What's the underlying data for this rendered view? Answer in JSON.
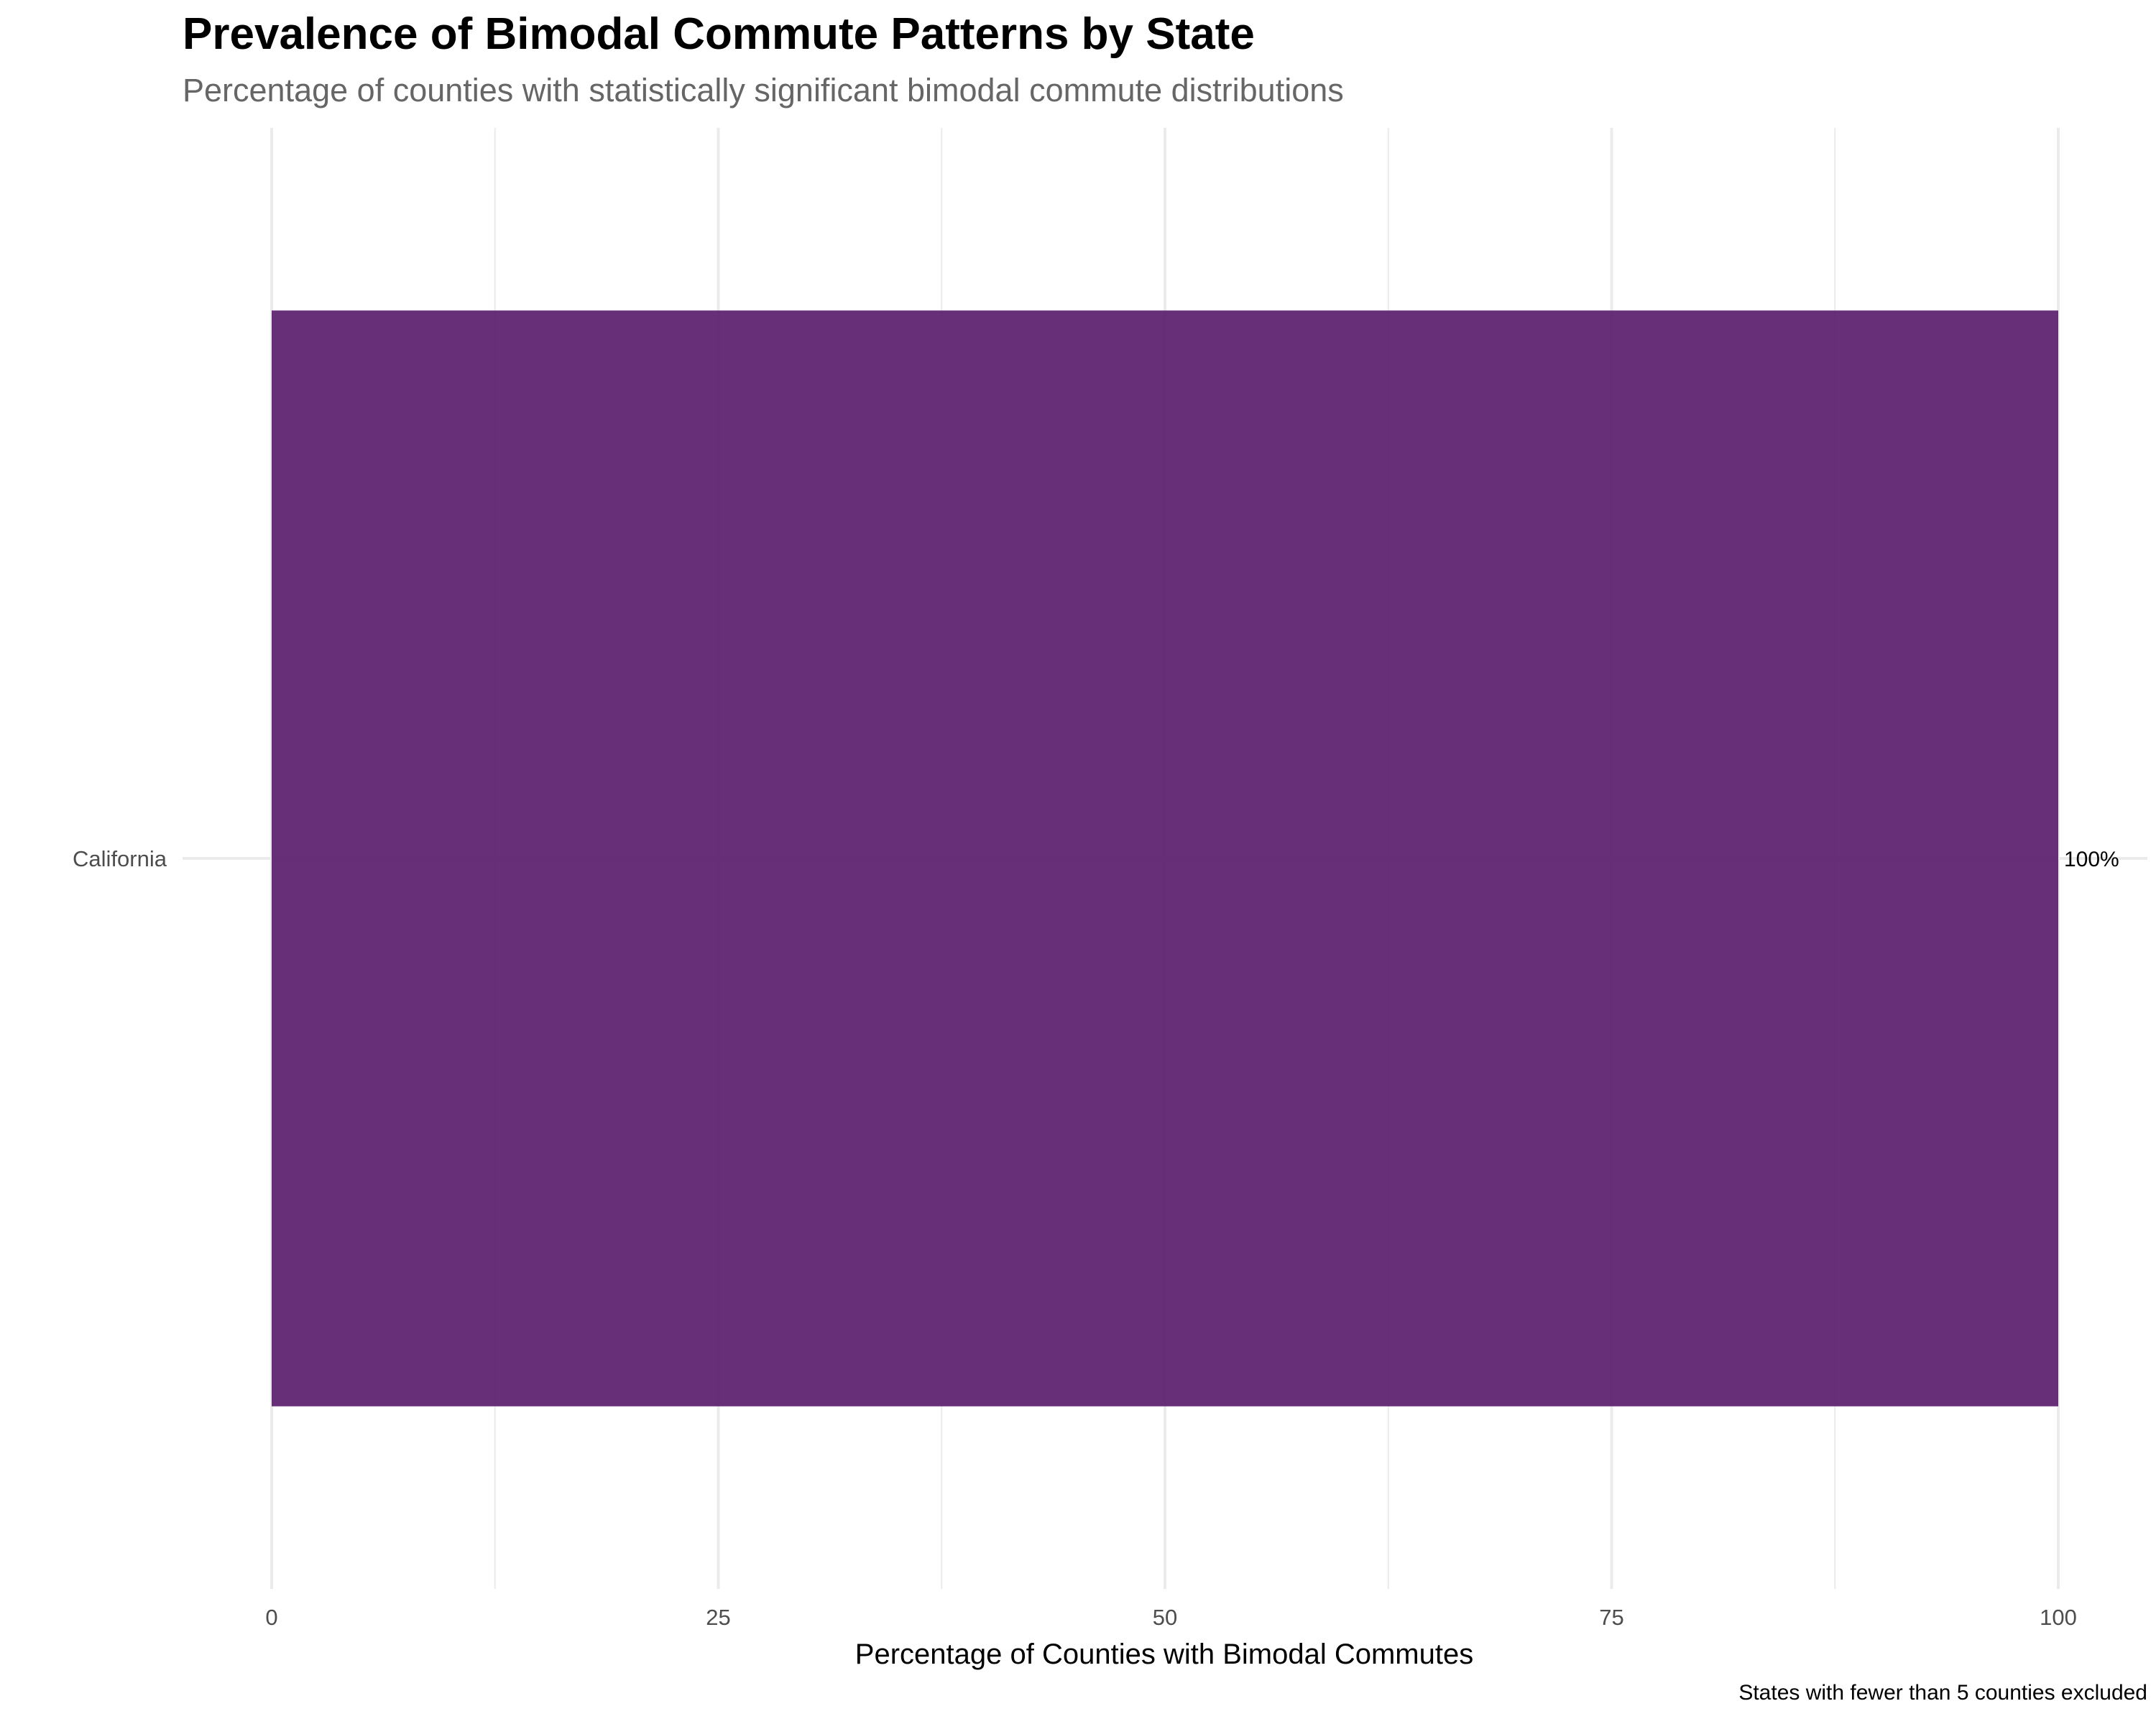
{
  "chart_data": {
    "type": "bar",
    "orientation": "horizontal",
    "title": "Prevalence of Bimodal Commute Patterns by State",
    "subtitle": "Percentage of counties with statistically significant bimodal commute distributions",
    "xlabel": "Percentage of Counties with Bimodal Commutes",
    "ylabel": "",
    "caption": "States with fewer than 5 counties excluded",
    "categories": [
      "California"
    ],
    "values": [
      100
    ],
    "data_labels": [
      "100%"
    ],
    "xlim": [
      0,
      100
    ],
    "x_ticks": [
      0,
      25,
      50,
      75,
      100
    ],
    "grid": true,
    "legend": "none",
    "colors": {
      "bar": "#5e2470",
      "grid": "#ebebeb"
    }
  }
}
